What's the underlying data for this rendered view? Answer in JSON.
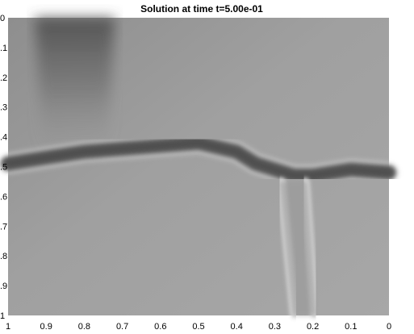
{
  "chart_data": {
    "type": "heatmap",
    "title": "Solution at time t=5.00e-01",
    "xlabel": "",
    "ylabel": "",
    "x_ticks": [
      "1",
      "0.9",
      "0.8",
      "0.7",
      "0.6",
      "0.5",
      "0.4",
      "0.3",
      "0.2",
      "0.1",
      "0"
    ],
    "y_ticks": [
      "0",
      ".1",
      ".2",
      ".3",
      ".4",
      ".5",
      ".6",
      ".7",
      ".8",
      ".9",
      "1"
    ],
    "xlim": [
      1,
      0
    ],
    "ylim": [
      0,
      1
    ],
    "colormap": "grayscale",
    "colors": {
      "background": "#a6a6a6",
      "dark_band": "#5a5a5a",
      "bright_edge": "#f2f2f2"
    },
    "features": {
      "horizontal_band": {
        "x": [
          1.0,
          0.9,
          0.8,
          0.7,
          0.6,
          0.5,
          0.4,
          0.35,
          0.3,
          0.25,
          0.2,
          0.1,
          0.0
        ],
        "y": [
          0.49,
          0.47,
          0.45,
          0.44,
          0.43,
          0.42,
          0.45,
          0.49,
          0.51,
          0.53,
          0.53,
          0.51,
          0.52
        ]
      },
      "vertical_channels": [
        {
          "x_top": 0.283,
          "x_bottom": 0.248,
          "y_top": 0.55,
          "y_bottom": 1.0
        },
        {
          "x_top": 0.22,
          "x_bottom": 0.195,
          "y_top": 0.55,
          "y_bottom": 1.0
        }
      ],
      "dark_plume": {
        "x_left": 0.93,
        "x_right": 0.72,
        "y_top": 0.0,
        "y_bottom": 0.45
      }
    }
  }
}
